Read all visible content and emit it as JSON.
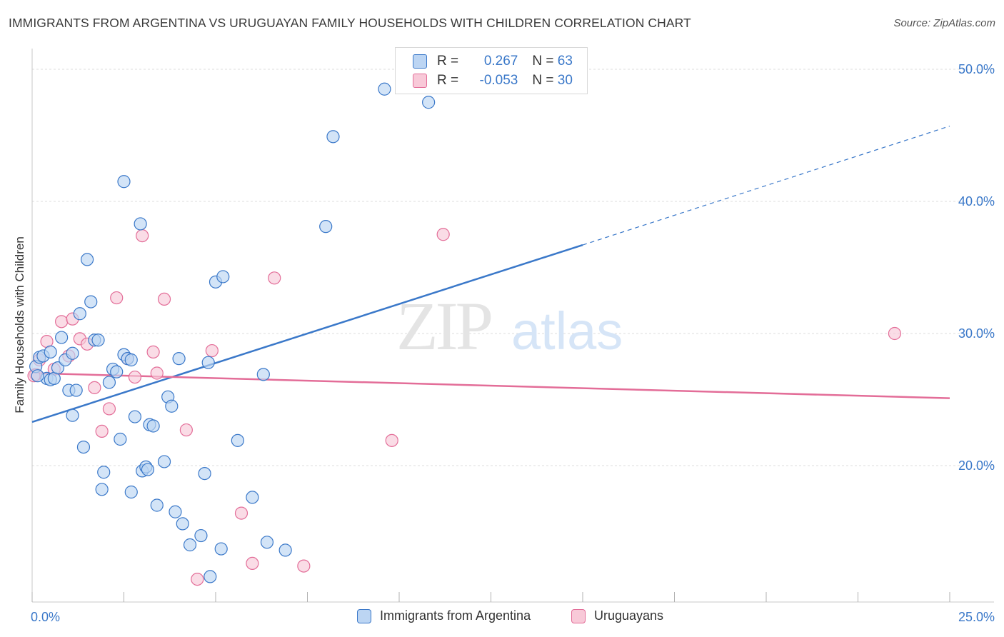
{
  "title": "IMMIGRANTS FROM ARGENTINA VS URUGUAYAN FAMILY HOUSEHOLDS WITH CHILDREN CORRELATION CHART",
  "source": "Source: ZipAtlas.com",
  "watermark": {
    "zip": "ZIP",
    "atlas": "atlas"
  },
  "colors": {
    "blue": "#3a78c9",
    "blue_fill": "#bcd5f3",
    "pink": "#e36d98",
    "pink_fill": "#f8c9d8",
    "grid": "#dcdcdc",
    "axis": "#555555"
  },
  "legend_top": [
    {
      "r_label": "R = ",
      "r_value": " 0.267",
      "n_label": "N = ",
      "n_value": "63"
    },
    {
      "r_label": "R = ",
      "r_value": "-0.053",
      "n_label": "N = ",
      "n_value": "30"
    }
  ],
  "chart_data": {
    "type": "scatter",
    "title": "IMMIGRANTS FROM ARGENTINA VS URUGUAYAN FAMILY HOUSEHOLDS WITH CHILDREN CORRELATION CHART",
    "xlabel": "",
    "ylabel": "Family Households with Children",
    "xlim": [
      0,
      25
    ],
    "ylim": [
      10.5,
      51.5
    ],
    "x_tick_labels": [
      "0.0%",
      "25.0%"
    ],
    "y_ticks": [
      20,
      30,
      40,
      50
    ],
    "y_tick_labels": [
      "20.0%",
      "30.0%",
      "40.0%",
      "50.0%"
    ],
    "grid": true,
    "legend": "bottom",
    "series": [
      {
        "name": "Immigrants from Argentina",
        "color": "#3a78c9",
        "fill": "#bcd5f3",
        "trend": {
          "x0": 0,
          "y0": 23.3,
          "x1": 15,
          "y1": 36.7,
          "dash_to_x": 25,
          "dash_to_y": 45.7
        },
        "points": [
          [
            0.1,
            27.5
          ],
          [
            0.2,
            28.2
          ],
          [
            0.3,
            28.3
          ],
          [
            0.4,
            26.6
          ],
          [
            0.5,
            28.6
          ],
          [
            0.5,
            26.5
          ],
          [
            0.6,
            26.6
          ],
          [
            0.7,
            27.4
          ],
          [
            0.8,
            29.7
          ],
          [
            0.9,
            28.0
          ],
          [
            1.0,
            25.7
          ],
          [
            1.1,
            28.5
          ],
          [
            1.1,
            23.8
          ],
          [
            1.2,
            25.7
          ],
          [
            1.3,
            31.5
          ],
          [
            1.4,
            21.4
          ],
          [
            1.5,
            35.6
          ],
          [
            1.6,
            32.4
          ],
          [
            1.7,
            29.5
          ],
          [
            1.8,
            29.5
          ],
          [
            1.9,
            18.2
          ],
          [
            1.95,
            19.5
          ],
          [
            2.1,
            26.3
          ],
          [
            2.2,
            27.3
          ],
          [
            2.3,
            27.1
          ],
          [
            2.4,
            22.0
          ],
          [
            2.5,
            28.4
          ],
          [
            2.5,
            41.5
          ],
          [
            2.6,
            28.1
          ],
          [
            2.7,
            28.0
          ],
          [
            2.7,
            18.0
          ],
          [
            2.8,
            23.7
          ],
          [
            2.95,
            38.3
          ],
          [
            3.0,
            19.6
          ],
          [
            3.1,
            19.9
          ],
          [
            3.15,
            19.7
          ],
          [
            3.2,
            23.1
          ],
          [
            3.3,
            23.0
          ],
          [
            3.4,
            17.0
          ],
          [
            3.6,
            20.3
          ],
          [
            3.7,
            25.2
          ],
          [
            3.8,
            24.5
          ],
          [
            3.9,
            16.5
          ],
          [
            4.0,
            28.1
          ],
          [
            4.1,
            15.6
          ],
          [
            4.3,
            14.0
          ],
          [
            4.6,
            14.7
          ],
          [
            4.7,
            19.4
          ],
          [
            4.8,
            27.8
          ],
          [
            4.85,
            11.6
          ],
          [
            5.0,
            33.9
          ],
          [
            5.15,
            13.7
          ],
          [
            5.2,
            34.3
          ],
          [
            5.6,
            21.9
          ],
          [
            6.0,
            17.6
          ],
          [
            6.3,
            26.9
          ],
          [
            6.4,
            14.2
          ],
          [
            6.9,
            13.6
          ],
          [
            8.0,
            38.1
          ],
          [
            8.2,
            44.9
          ],
          [
            9.6,
            48.5
          ],
          [
            10.8,
            47.5
          ],
          [
            0.15,
            26.8
          ]
        ]
      },
      {
        "name": "Uruguayans",
        "color": "#e36d98",
        "fill": "#f8c9d8",
        "trend": {
          "x0": 0,
          "y0": 27.0,
          "x1": 25,
          "y1": 25.1
        },
        "points": [
          [
            0.1,
            26.9
          ],
          [
            0.2,
            28.0
          ],
          [
            0.4,
            29.4
          ],
          [
            0.6,
            27.3
          ],
          [
            0.8,
            30.9
          ],
          [
            1.0,
            28.3
          ],
          [
            1.1,
            31.1
          ],
          [
            1.3,
            29.6
          ],
          [
            1.5,
            29.2
          ],
          [
            1.7,
            25.9
          ],
          [
            1.9,
            22.6
          ],
          [
            2.1,
            24.3
          ],
          [
            2.3,
            32.7
          ],
          [
            2.6,
            28.1
          ],
          [
            2.8,
            26.7
          ],
          [
            3.0,
            37.4
          ],
          [
            3.3,
            28.6
          ],
          [
            3.4,
            27.0
          ],
          [
            3.6,
            32.6
          ],
          [
            4.2,
            22.7
          ],
          [
            4.5,
            11.4
          ],
          [
            4.9,
            28.7
          ],
          [
            5.7,
            16.4
          ],
          [
            6.0,
            12.6
          ],
          [
            6.6,
            34.2
          ],
          [
            7.4,
            12.4
          ],
          [
            9.8,
            21.9
          ],
          [
            11.2,
            37.5
          ],
          [
            23.5,
            30.0
          ],
          [
            0.05,
            26.8
          ]
        ]
      }
    ]
  }
}
